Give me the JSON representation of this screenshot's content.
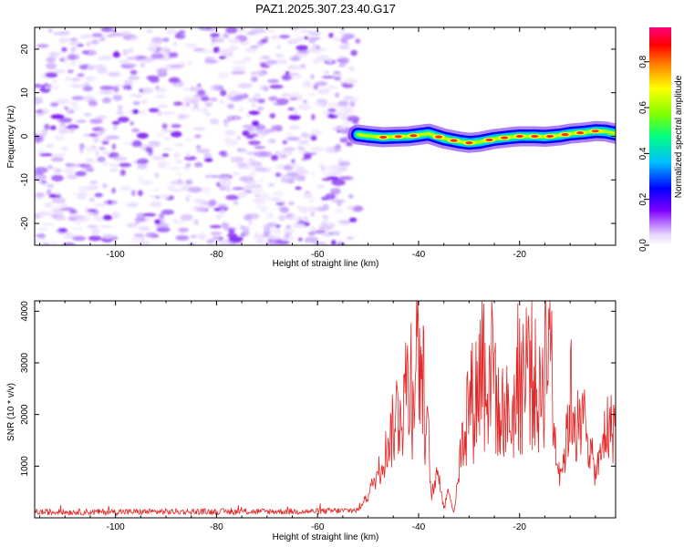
{
  "title": "PAZ1.2025.307.23.40.G17",
  "colors": {
    "scatter": "#8a2be2",
    "signal_line": "#e32626",
    "colormap": [
      "#ffffff",
      "#e6d4ff",
      "#7f00ff",
      "#0000ff",
      "#00bfff",
      "#00ff80",
      "#80ff00",
      "#ffff00",
      "#ff8000",
      "#ff0000",
      "#ff0080"
    ]
  },
  "chart_data": [
    {
      "id": "spectrogram",
      "type": "heatmap",
      "xlabel": "Height of straight line (km)",
      "ylabel": "Frequency (Hz)",
      "xlim": [
        -116,
        -1
      ],
      "ylim": [
        -25,
        25
      ],
      "xticks": [
        -100,
        -80,
        -60,
        -40,
        -20
      ],
      "xtick_labels": [
        "-100",
        "-80",
        "-60",
        "-40",
        "-20"
      ],
      "yticks": [
        -20,
        -10,
        0,
        10,
        20
      ],
      "ytick_labels": [
        "-20",
        "-10",
        "0",
        "10",
        "20"
      ],
      "noise_region_x": [
        -116,
        -52
      ],
      "signal_trace": {
        "x": [
          -52,
          -50,
          -47,
          -45,
          -42,
          -40,
          -38,
          -35,
          -32,
          -30,
          -28,
          -25,
          -22,
          -20,
          -17,
          -15,
          -12,
          -10,
          -7,
          -5,
          -3,
          -1
        ],
        "y": [
          0.4,
          0.1,
          -0.2,
          -0.1,
          0.0,
          0.3,
          0.6,
          -0.5,
          -1.2,
          -1.5,
          -1.3,
          -0.6,
          -0.2,
          0.0,
          0.0,
          -0.1,
          0.2,
          0.6,
          0.9,
          1.2,
          1.1,
          0.6
        ]
      },
      "colorbar": {
        "label": "Normalized spectral amplitude",
        "ticks": [
          0.0,
          0.2,
          0.4,
          0.6,
          0.8
        ],
        "tick_labels": [
          "0.0",
          "0.2",
          "0.4",
          "0.6",
          "0.8"
        ],
        "range": [
          0,
          0.95
        ]
      }
    },
    {
      "id": "snr",
      "type": "line",
      "xlabel": "Height of straight line (km)",
      "ylabel": "SNR (10 * v/v)",
      "xlim": [
        -116,
        -1
      ],
      "ylim": [
        0,
        4200
      ],
      "xticks": [
        -100,
        -80,
        -60,
        -40,
        -20
      ],
      "xtick_labels": [
        "-100",
        "-80",
        "-60",
        "-40",
        "-20"
      ],
      "yticks": [
        1000,
        2000,
        3000,
        4000
      ],
      "ytick_labels": [
        "1000",
        "2000",
        "3000",
        "4000"
      ],
      "series": [
        {
          "name": "SNR",
          "x": [
            -116,
            -100,
            -80,
            -60,
            -52,
            -50,
            -48,
            -46,
            -44,
            -42.5,
            -41,
            -40.2,
            -39,
            -38,
            -37.5,
            -36,
            -35,
            -34,
            -33,
            -31.5,
            -30,
            -29,
            -28,
            -27.5,
            -26.5,
            -25.5,
            -24,
            -23,
            -22,
            -21,
            -20,
            -19,
            -18,
            -17,
            -16,
            -15,
            -14,
            -13.5,
            -13,
            -12,
            -11,
            -10,
            -9,
            -8,
            -7,
            -6,
            -5,
            -4,
            -3,
            -2,
            -1
          ],
          "y": [
            110,
            115,
            120,
            125,
            150,
            450,
            900,
            1450,
            2100,
            2500,
            2900,
            3650,
            2400,
            1400,
            400,
            900,
            200,
            550,
            100,
            1400,
            2350,
            2250,
            2700,
            3400,
            2700,
            3400,
            1750,
            2200,
            1800,
            2200,
            2900,
            2700,
            3300,
            2500,
            2200,
            3500,
            4100,
            2300,
            1500,
            900,
            1200,
            2400,
            2000,
            1600,
            2000,
            1300,
            850,
            1150,
            1700,
            1700,
            1950
          ]
        }
      ]
    }
  ]
}
